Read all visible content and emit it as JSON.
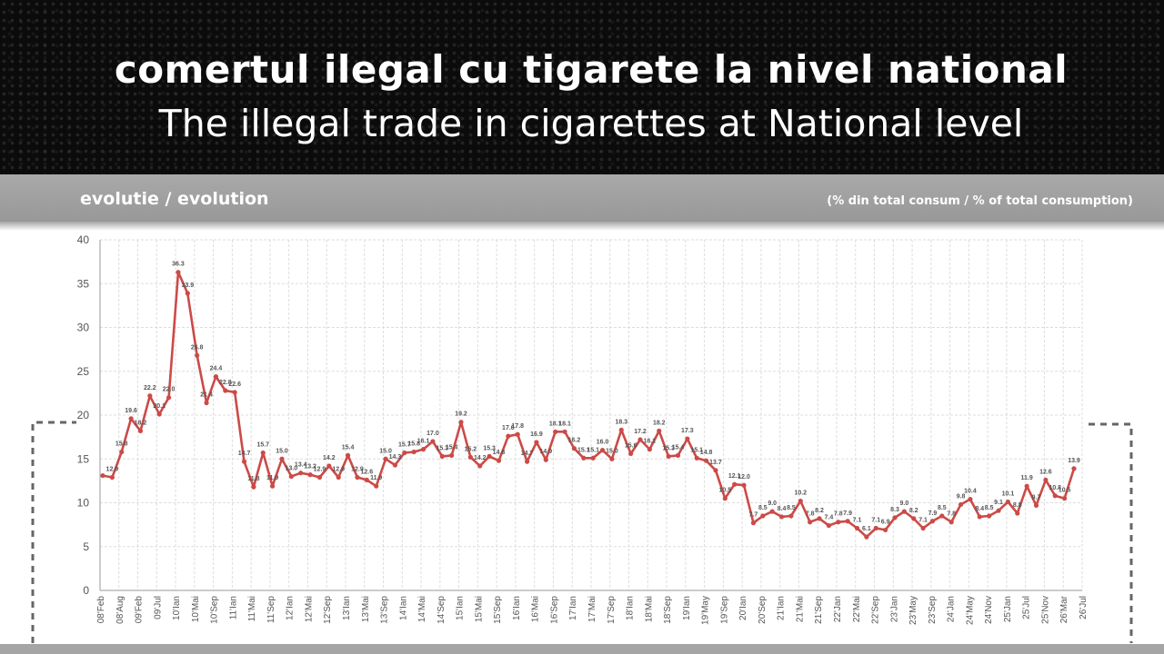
{
  "header": {
    "title_ro": "comertul ilegal cu tigarete la nivel national",
    "title_en": "The illegal trade in cigarettes at National level"
  },
  "band": {
    "left_label": "evolutie / evolution",
    "right_label": "(% din total consum / % of total consumption)"
  },
  "colors": {
    "line": "#cc4a47",
    "grid": "#dddddd",
    "header_bg": "#0b0b0b",
    "band_bg": "#a3a3a3"
  },
  "chart_data": {
    "type": "line",
    "title": "",
    "xlabel": "",
    "ylabel": "",
    "ylim": [
      0,
      40
    ],
    "yticks": [
      0,
      5,
      10,
      15,
      20,
      25,
      30,
      35,
      40
    ],
    "grid": true,
    "legend": "none",
    "x_tick_labels": [
      "08'Feb",
      "08'Aug",
      "09'Feb",
      "09'Jul",
      "10'Ian",
      "10'Mai",
      "10'Sep",
      "11'Ian",
      "11'Mai",
      "11'Sep",
      "12'Ian",
      "12'Mai",
      "12'Sep",
      "13'Ian",
      "13'Mai",
      "13'Sep",
      "14'Ian",
      "14'Mai",
      "14'Sep",
      "15'Ian",
      "15'Mai",
      "15'Sep",
      "16'Ian",
      "16'Mai",
      "16'Sep",
      "17'Ian",
      "17'Mai",
      "17'Sep",
      "18'Ian",
      "18'Mai",
      "18'Sep",
      "19'Ian",
      "19'May",
      "19'Sep",
      "20'Ian",
      "20'Sep",
      "21'Ian",
      "21'Mai",
      "21'Sep",
      "22'Jan",
      "22'Mai",
      "22'Sep",
      "23'Jan",
      "23'May",
      "23'Sep",
      "24'Jan",
      "24'May",
      "24'Nov",
      "25'Jan",
      "25'Jul",
      "25'Nov",
      "26'Mar",
      "26'Jul"
    ],
    "series": [
      {
        "values": [
          13.1,
          12.9,
          15.8,
          19.6,
          18.2,
          22.2,
          20.1,
          22.0,
          36.3,
          33.9,
          26.8,
          21.4,
          24.4,
          22.8,
          22.6,
          14.7,
          11.8,
          15.7,
          11.9,
          15.0,
          13.0,
          13.4,
          13.2,
          12.9,
          14.2,
          12.9,
          15.4,
          12.9,
          12.6,
          11.9,
          15.0,
          14.3,
          15.7,
          15.8,
          16.1,
          17.0,
          15.3,
          15.4,
          19.2,
          15.2,
          14.2,
          15.3,
          14.8,
          17.6,
          17.8,
          14.7,
          16.9,
          14.9,
          18.1,
          18.1,
          16.2,
          15.1,
          15.1,
          16.0,
          15.0,
          18.3,
          15.6,
          17.2,
          16.1,
          18.2,
          15.3,
          15.4,
          17.3,
          15.1,
          14.8,
          13.7,
          10.5,
          12.1,
          12.0,
          7.7,
          8.5,
          9.0,
          8.4,
          8.5,
          10.2,
          7.8,
          8.2,
          7.4,
          7.8,
          7.9,
          7.1,
          6.1,
          7.1,
          6.9,
          8.3,
          9.0,
          8.2,
          7.1,
          7.9,
          8.5,
          7.8,
          9.8,
          10.4,
          8.4,
          8.5,
          9.1,
          10.1,
          8.8,
          11.9,
          9.7,
          12.6,
          10.8,
          10.5,
          13.9
        ],
        "labels": [
          "",
          "12.9",
          "15.8",
          "19.6",
          "18.2",
          "22.2",
          "20.1",
          "22.0",
          "36.3",
          "33.9",
          "26.8",
          "21.4",
          "24.4",
          "22.8",
          "22.6",
          "14.7",
          "11.8",
          "15.7",
          "11.9",
          "15.0",
          "13.0",
          "13.4",
          "13.2",
          "12.9",
          "14.2",
          "12.9",
          "15.4",
          "12.9",
          "12.6",
          "11.9",
          "15.0",
          "14.3",
          "15.7",
          "15.8",
          "16.1",
          "17.0",
          "15.3",
          "15.4",
          "19.2",
          "15.2",
          "14.2",
          "15.3",
          "14.8",
          "17.6",
          "17.8",
          "14.7",
          "16.9",
          "14.9",
          "18.1",
          "18.1",
          "16.2",
          "15.1",
          "15.1",
          "16.0",
          "15.0",
          "18.3",
          "15.6",
          "17.2",
          "16.1",
          "18.2",
          "15.3",
          "15.4",
          "17.3",
          "15.1",
          "14.8",
          "13.7",
          "10.5",
          "12.1",
          "12.0",
          "7.7",
          "8.5",
          "9.0",
          "8.4",
          "8.5",
          "10.2",
          "7.8",
          "8.2",
          "7.4",
          "7.8",
          "7.9",
          "7.1",
          "6.1",
          "7.1",
          "6.9",
          "8.3",
          "9.0",
          "8.2",
          "7.1",
          "7.9",
          "8.5",
          "7.8",
          "9.8",
          "10.4",
          "8.4",
          "8.5",
          "9.1",
          "10.1",
          "8.8",
          "11.9",
          "9.7",
          "12.6",
          "10.8",
          "10.5",
          "13.9"
        ]
      }
    ]
  }
}
